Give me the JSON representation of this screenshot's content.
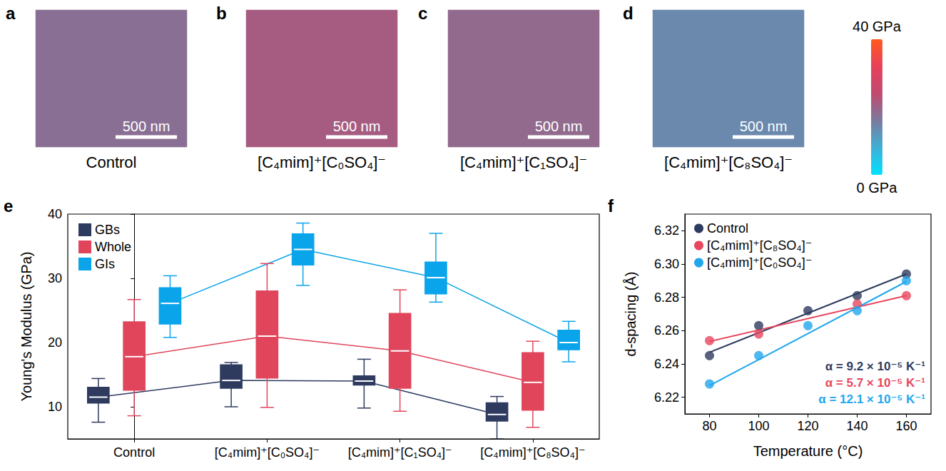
{
  "chart_data": [
    {
      "type": "heatmap",
      "panel": "a",
      "label": "Control",
      "scale_bar": "500 nm",
      "value": 17.8
    },
    {
      "type": "heatmap",
      "panel": "b",
      "label": "[C₄mim]⁺[C₀SO₄]⁻",
      "scale_bar": "500 nm",
      "value": 21.0
    },
    {
      "type": "heatmap",
      "panel": "c",
      "label": "[C₄mim]⁺[C₁SO₄]⁻",
      "scale_bar": "500 nm",
      "value": 18.7
    },
    {
      "type": "heatmap",
      "panel": "d",
      "label": "[C₄mim]⁺[C₈SO₄]⁻",
      "scale_bar": "500 nm",
      "value": 13.8
    },
    {
      "type": "colorbar",
      "range": [
        0,
        40
      ],
      "ticks": [
        {
          "value": 0,
          "label": "0 GPa"
        },
        {
          "value": 40,
          "label": "40 GPa"
        }
      ]
    },
    {
      "type": "boxplot",
      "panel": "e",
      "categories": [
        "Control",
        "[C₄mim]⁺[C₀SO₄]⁻",
        "[C₄mim]⁺[C₁SO₄]⁻",
        "[C₄mim]⁺[C₈SO₄]⁻"
      ],
      "ylabel": "Young's Modulus (GPa)",
      "ylim": [
        5,
        40
      ],
      "yticks": [
        10,
        20,
        30,
        40
      ],
      "grid": false,
      "legend": "upper left",
      "series": [
        {
          "name": "GBs",
          "color": "#2e3b5f",
          "values": [
            [
              7.6,
              10.5,
              11.5,
              13.1,
              14.4
            ],
            [
              10.0,
              12.8,
              14.1,
              16.6,
              16.9
            ],
            [
              9.8,
              13.3,
              14.0,
              14.9,
              17.4
            ],
            [
              5.0,
              7.7,
              8.8,
              10.7,
              11.6
            ]
          ]
        },
        {
          "name": "Whole",
          "color": "#e0455c",
          "values": [
            [
              8.6,
              12.5,
              17.8,
              23.3,
              26.7
            ],
            [
              9.9,
              14.4,
              21.0,
              28.1,
              32.3
            ],
            [
              9.3,
              12.8,
              18.7,
              24.6,
              28.2
            ],
            [
              6.8,
              9.4,
              13.8,
              18.5,
              20.2
            ]
          ]
        },
        {
          "name": "GIs",
          "color": "#0aa4ea",
          "values": [
            [
              20.8,
              22.8,
              26.1,
              28.6,
              30.4
            ],
            [
              28.9,
              32.0,
              34.5,
              37.0,
              38.6
            ],
            [
              26.3,
              27.5,
              30.1,
              32.6,
              37.0
            ],
            [
              17.0,
              18.8,
              20.0,
              22.0,
              23.3
            ]
          ]
        }
      ]
    },
    {
      "type": "scatter",
      "panel": "f",
      "xlabel": "Temperature (°C)",
      "ylabel": "d-spacing (Å)",
      "xlim": [
        70,
        170
      ],
      "xticks": [
        80,
        100,
        120,
        140,
        160
      ],
      "ylim": [
        6.21,
        6.33
      ],
      "yticks": [
        6.22,
        6.24,
        6.26,
        6.28,
        {
          "value": 6.3,
          "label": "6.30"
        },
        6.32
      ],
      "grid": false,
      "legend": "upper left",
      "series": [
        {
          "name": "Control",
          "color": "#2e3b5f",
          "marker": "circle",
          "line_style": "solid",
          "x": [
            80,
            100,
            120,
            140,
            160
          ],
          "values": [
            6.245,
            6.263,
            6.272,
            6.281,
            6.294
          ],
          "fit": {
            "x": [
              80,
              160
            ],
            "values": [
              6.247,
              6.294
            ]
          },
          "annotation": "α = 9.2 × 10⁻⁵ K⁻¹"
        },
        {
          "name": "[C₄mim]⁺[C₈SO₄]⁻",
          "color": "#e8465e",
          "marker": "circle",
          "line_style": "solid",
          "x": [
            80,
            100,
            140,
            160
          ],
          "values": [
            6.254,
            6.258,
            6.276,
            6.281
          ],
          "fit": {
            "x": [
              80,
              160
            ],
            "values": [
              6.2535,
              6.281
            ]
          },
          "annotation": "α = 5.7 × 10⁻⁵ K⁻¹"
        },
        {
          "name": "[C₄mim]⁺[C₀SO₄]⁻",
          "color": "#21a7ec",
          "marker": "circle",
          "line_style": "solid",
          "x": [
            80,
            100,
            120,
            140,
            160
          ],
          "values": [
            6.228,
            6.245,
            6.263,
            6.272,
            6.29
          ],
          "fit": {
            "x": [
              80,
              160
            ],
            "values": [
              6.227,
              6.2895
            ]
          },
          "annotation": "α = 12.1 × 10⁻⁵ K⁻¹"
        }
      ]
    }
  ]
}
